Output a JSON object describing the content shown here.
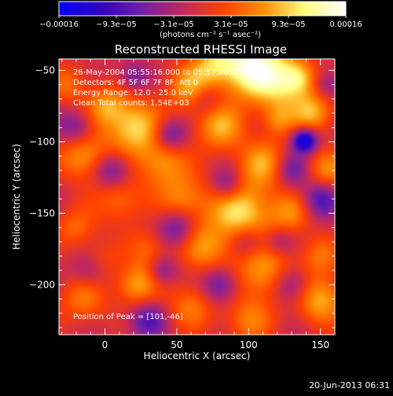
{
  "chart_data": {
    "type": "heatmap",
    "title": "Reconstructed RHESSI Image",
    "xlabel": "Heliocentric X (arcsec)",
    "ylabel": "Heliocentric Y (arcsec)",
    "xlim": [
      -32,
      160
    ],
    "ylim": [
      -235,
      -42
    ],
    "x_ticks": [
      0,
      50,
      100,
      150
    ],
    "x_tick_labels": [
      "0",
      "50",
      "100",
      "150"
    ],
    "y_ticks": [
      -50,
      -100,
      -150,
      -200
    ],
    "y_tick_labels": [
      "−50",
      "−100",
      "−150",
      "−200"
    ],
    "colorbar": {
      "min": -0.00016,
      "max": 0.00016,
      "tick_labels": [
        "−0.00016",
        "−9.3e−05",
        "−3.1e−05",
        "3.1e−05",
        "9.3e−05",
        "0.00016"
      ],
      "units": "(photons cm⁻² s⁻¹ asec⁻²)",
      "colors": [
        "#0000ff",
        "#3000c0",
        "#7020a8",
        "#c02860",
        "#ff4000",
        "#ff9000",
        "#ffff80",
        "#ffffff"
      ]
    },
    "annotations": [
      "26-May-2004 05:55:16.000 to 05:57:00.000",
      "Detectors: 4F 5F 6F 7F 8F, Att 0",
      "Energy Range: 12.0 - 25.0 keV",
      "Clean    Total counts: 1.54E+03"
    ],
    "peak_label": "Position of Peak = [101,-46]",
    "peak": [
      101,
      -46
    ],
    "cold_spot": [
      139,
      -99
    ],
    "grid": false,
    "legend": "none"
  },
  "footer": {
    "timestamp": "20-Jun-2013 06:31"
  }
}
